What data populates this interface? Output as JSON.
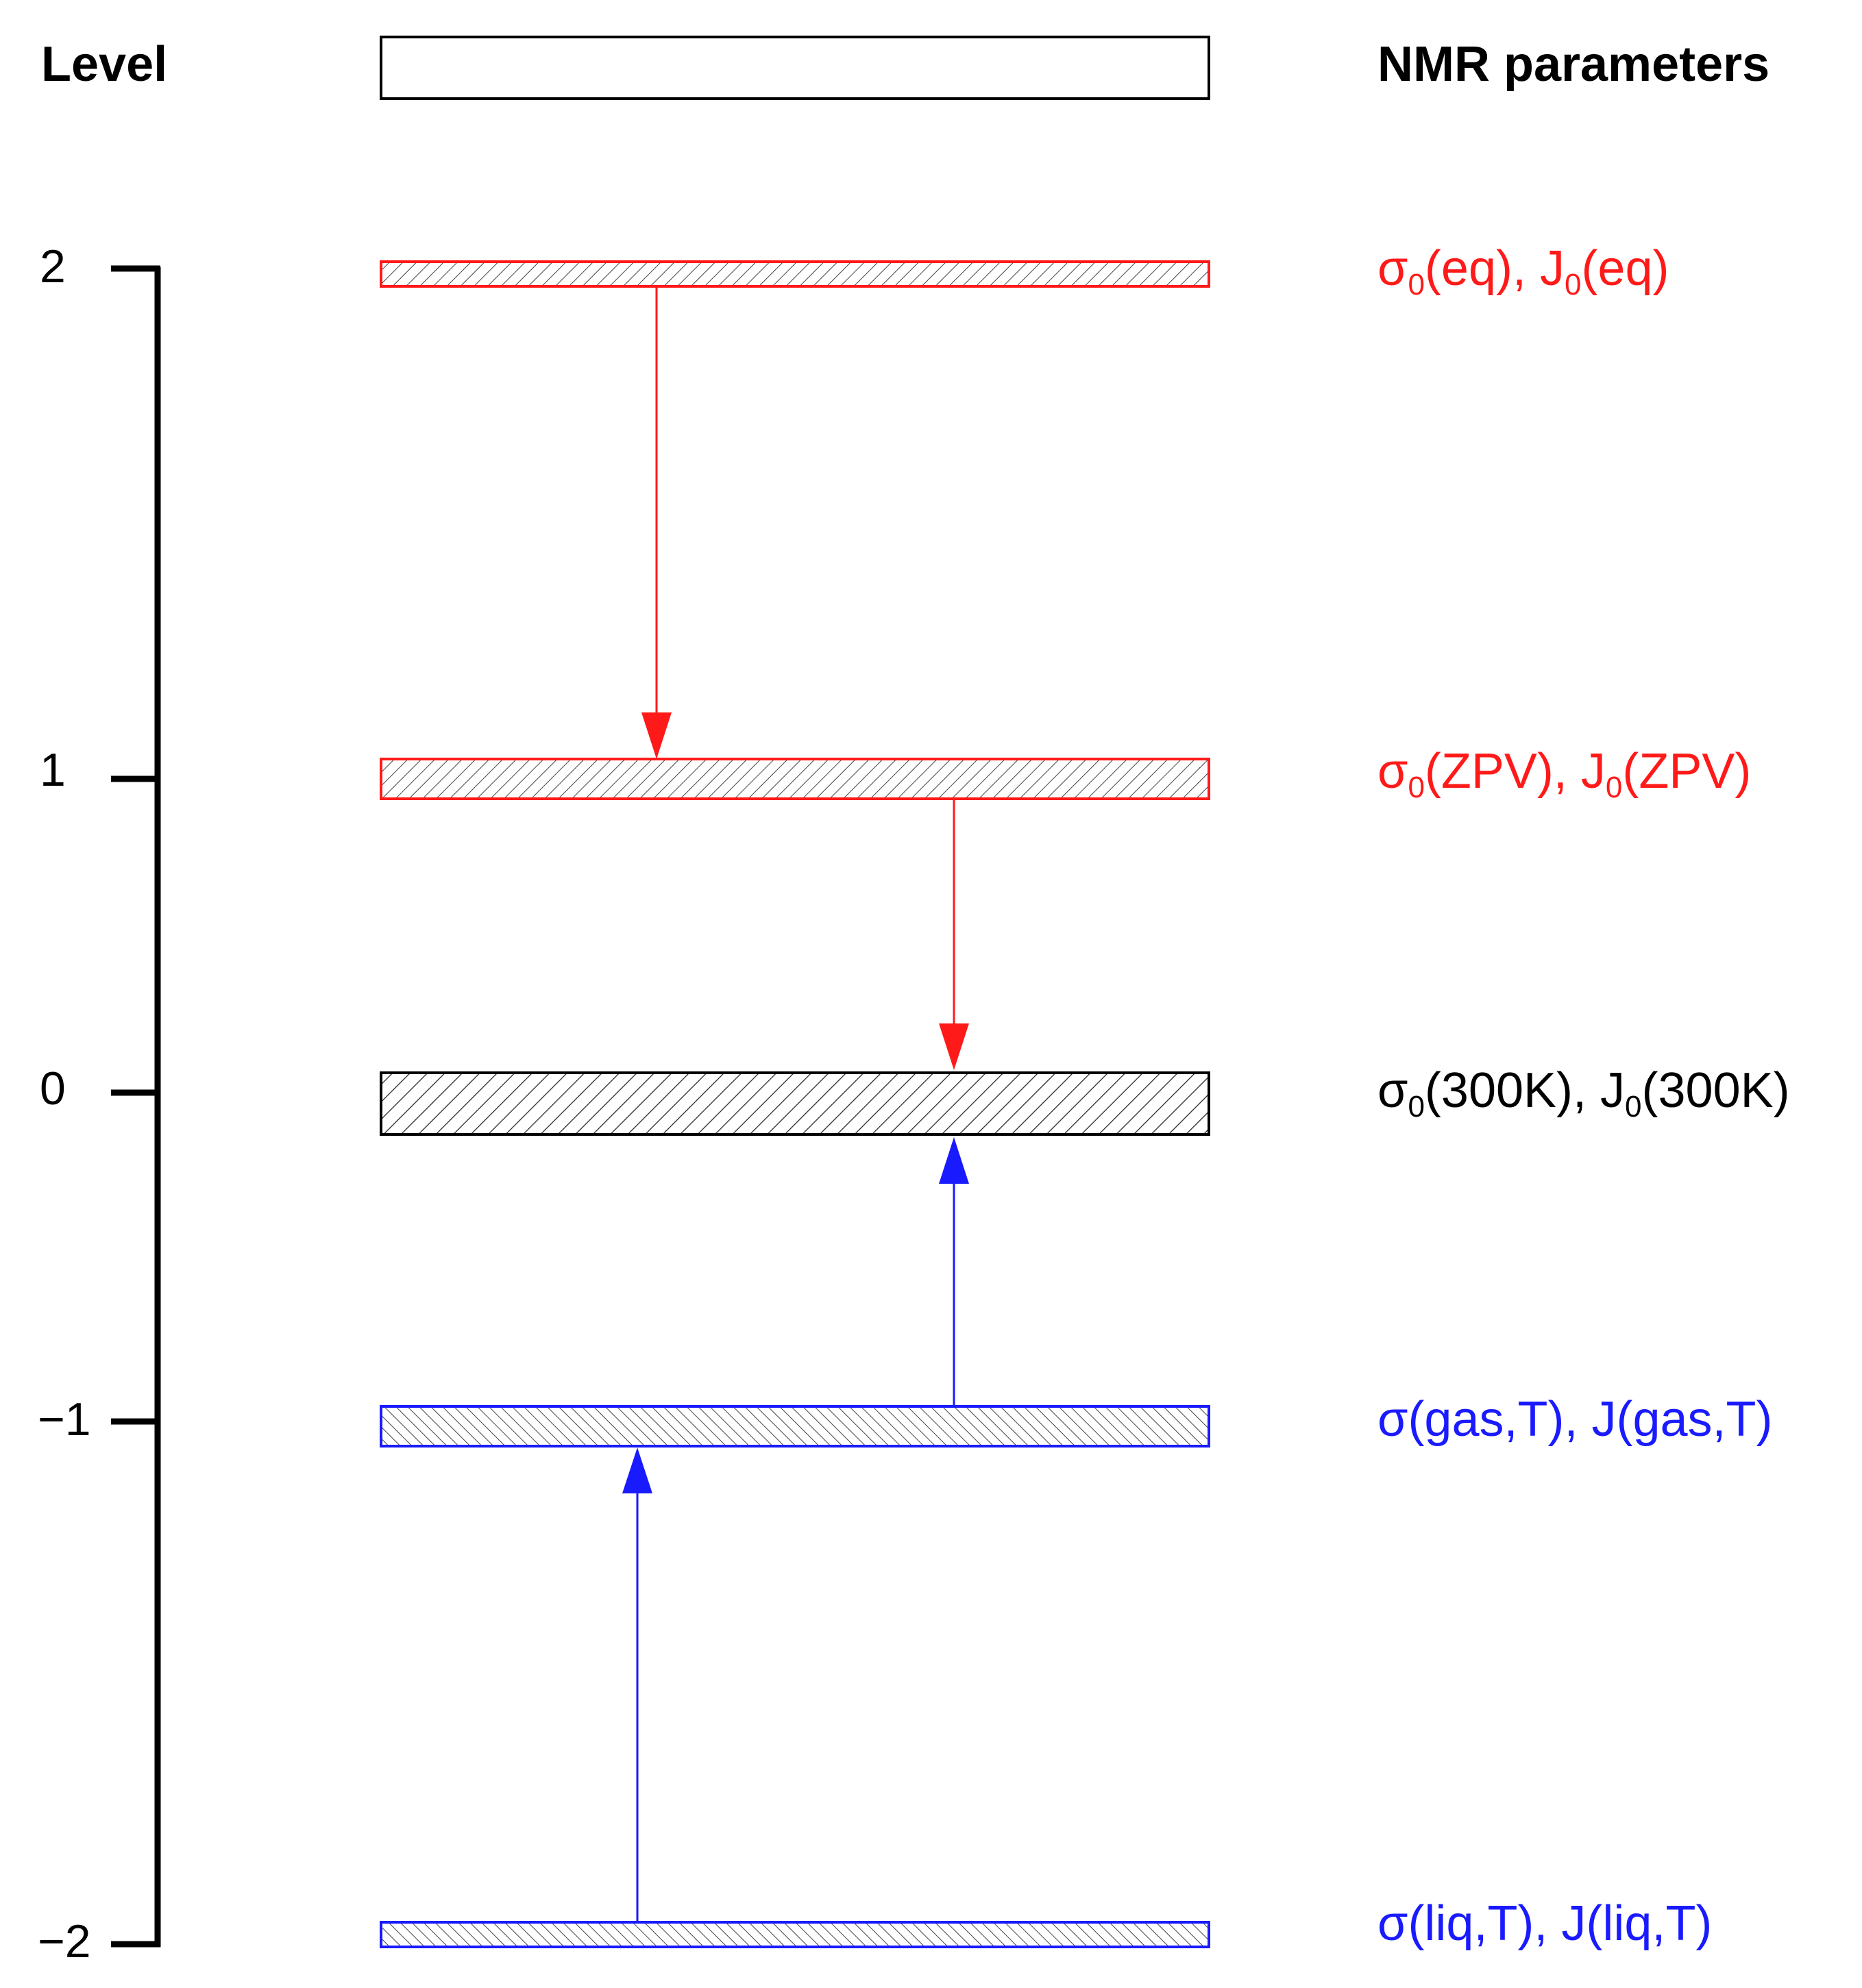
{
  "headers": {
    "level": "Level",
    "params": "NMR parameters"
  },
  "colors": {
    "red": "#ff1a1a",
    "blue": "#1a1aff",
    "black": "#000000"
  },
  "axis": {
    "ticks": [
      {
        "value": 2,
        "label": "2"
      },
      {
        "value": 1,
        "label": "1"
      },
      {
        "value": 0,
        "label": "0"
      },
      {
        "value": -1,
        "label": "−1"
      },
      {
        "value": -2,
        "label": "−2"
      }
    ]
  },
  "levels": [
    {
      "id": "eq",
      "value": 2,
      "color": "red",
      "sym1": "σ",
      "sub1": "0",
      "arg1": "(eq), ",
      "sym2": "J",
      "sub2": "0",
      "arg2": "(eq)"
    },
    {
      "id": "zpv",
      "value": 1,
      "color": "red",
      "sym1": "σ",
      "sub1": "0",
      "arg1": "(ZPV), ",
      "sym2": "J",
      "sub2": "0",
      "arg2": "(ZPV)"
    },
    {
      "id": "300k",
      "value": 0,
      "color": "black",
      "sym1": "σ",
      "sub1": "0",
      "arg1": "(300K), ",
      "sym2": "J",
      "sub2": "0",
      "arg2": "(300K)"
    },
    {
      "id": "gas",
      "value": -1,
      "color": "blue",
      "sym1": "σ",
      "sub1": "",
      "arg1": "(gas,T), ",
      "sym2": "J",
      "sub2": "",
      "arg2": "(gas,T)"
    },
    {
      "id": "liq",
      "value": -2,
      "color": "blue",
      "sym1": "σ",
      "sub1": "",
      "arg1": "(liq,T), ",
      "sym2": "J",
      "sub2": "",
      "arg2": "(liq,T)"
    }
  ]
}
